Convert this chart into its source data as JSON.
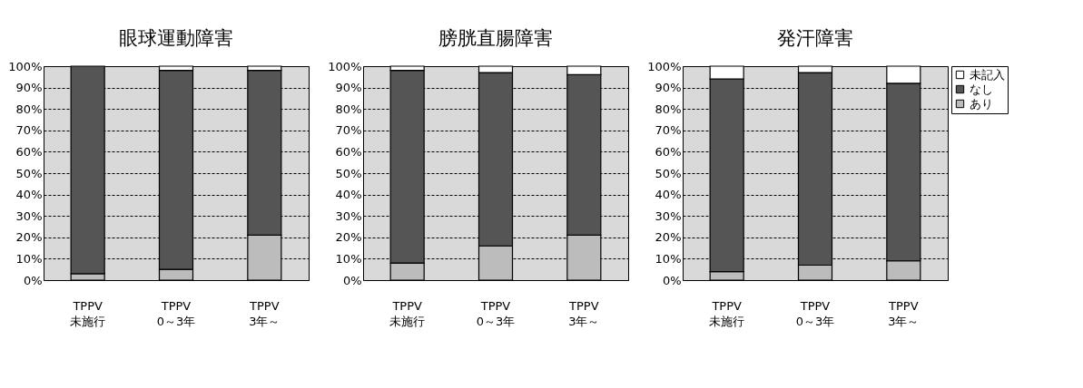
{
  "chart_data": [
    {
      "type": "bar",
      "title": "眼球運動障害",
      "categories": [
        "TPPV\n未施行",
        "TPPV\n0～3年",
        "TPPV\n3年～"
      ],
      "stacked": true,
      "grid": "y",
      "ylim": [
        0,
        100
      ],
      "yticks": [
        {
          "value": 0,
          "label": "0%"
        },
        {
          "value": 10,
          "label": "10%"
        },
        {
          "value": 20,
          "label": "20%"
        },
        {
          "value": 30,
          "label": "30%"
        },
        {
          "value": 40,
          "label": "40%"
        },
        {
          "value": 50,
          "label": "50%"
        },
        {
          "value": 60,
          "label": "60%"
        },
        {
          "value": 70,
          "label": "70%"
        },
        {
          "value": 80,
          "label": "80%"
        },
        {
          "value": 90,
          "label": "90%"
        },
        {
          "value": 100,
          "label": "100%"
        }
      ],
      "series": [
        {
          "color": "#bcbcbc",
          "values": [
            3,
            5,
            21
          ]
        },
        {
          "color": "#555555",
          "values": [
            97,
            93,
            77
          ]
        },
        {
          "color": "#ffffff",
          "values": [
            null,
            2,
            2
          ]
        }
      ]
    },
    {
      "type": "bar",
      "title": "膀胱直腸障害",
      "categories": [
        "TPPV\n未施行",
        "TPPV\n0～3年",
        "TPPV\n3年～"
      ],
      "stacked": true,
      "grid": "y",
      "ylim": [
        0,
        100
      ],
      "yticks": [
        {
          "value": 0,
          "label": "0%"
        },
        {
          "value": 10,
          "label": "10%"
        },
        {
          "value": 20,
          "label": "20%"
        },
        {
          "value": 30,
          "label": "30%"
        },
        {
          "value": 40,
          "label": "40%"
        },
        {
          "value": 50,
          "label": "50%"
        },
        {
          "value": 60,
          "label": "60%"
        },
        {
          "value": 70,
          "label": "70%"
        },
        {
          "value": 80,
          "label": "80%"
        },
        {
          "value": 90,
          "label": "90%"
        },
        {
          "value": 100,
          "label": "100%"
        }
      ],
      "series": [
        {
          "color": "#bcbcbc",
          "values": [
            8,
            16,
            21
          ]
        },
        {
          "color": "#555555",
          "values": [
            90,
            81,
            75
          ]
        },
        {
          "color": "#ffffff",
          "values": [
            2,
            3,
            4
          ]
        }
      ]
    },
    {
      "type": "bar",
      "title": "発汗障害",
      "categories": [
        "TPPV\n未施行",
        "TPPV\n0～3年",
        "TPPV\n3年～"
      ],
      "stacked": true,
      "grid": "y",
      "legend": "top right",
      "ylim": [
        0,
        100
      ],
      "yticks": [
        {
          "value": 0,
          "label": "0%"
        },
        {
          "value": 10,
          "label": "10%"
        },
        {
          "value": 20,
          "label": "20%"
        },
        {
          "value": 30,
          "label": "30%"
        },
        {
          "value": 40,
          "label": "40%"
        },
        {
          "value": 50,
          "label": "50%"
        },
        {
          "value": 60,
          "label": "60%"
        },
        {
          "value": 70,
          "label": "70%"
        },
        {
          "value": 80,
          "label": "80%"
        },
        {
          "value": 90,
          "label": "90%"
        },
        {
          "value": 100,
          "label": "100%"
        }
      ],
      "series": [
        {
          "name": "あり",
          "color": "#bcbcbc",
          "values": [
            4,
            7,
            9
          ]
        },
        {
          "name": "なし",
          "color": "#555555",
          "values": [
            90,
            90,
            83
          ]
        },
        {
          "name": "未記入",
          "color": "#ffffff",
          "values": [
            6,
            3,
            8
          ]
        }
      ]
    }
  ]
}
